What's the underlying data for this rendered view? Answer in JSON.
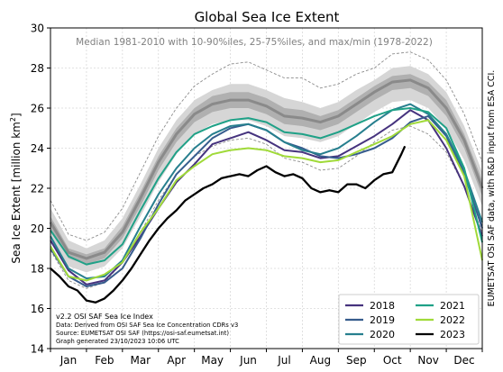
{
  "chart_data": {
    "type": "line",
    "title": "Global Sea Ice Extent",
    "subtitle": "Median 1981-2010 with 10-90%iles, 25-75%iles, and max/min (1978-2022)",
    "ylabel_main": "Sea Ice Extent [million km",
    "ylabel_sup": "2",
    "ylabel_end": "]",
    "xlabel": "",
    "ylim": [
      14,
      30
    ],
    "yticks": [
      "14",
      "16",
      "18",
      "20",
      "22",
      "24",
      "26",
      "28",
      "30"
    ],
    "months": [
      "Jan",
      "Feb",
      "Mar",
      "Apr",
      "May",
      "Jun",
      "Jul",
      "Aug",
      "Sep",
      "Oct",
      "Nov",
      "Dec"
    ],
    "xlim": [
      0,
      12
    ],
    "grid": true,
    "legend_position": "bottom-right",
    "right_note": "EUMETSAT OSI SAF data, with R&D input from ESA CCI.",
    "footnote": [
      "v2.2 OSI SAF Sea Ice Index",
      "Data: Derived from OSI SAF Sea Ice Concentration CDRs v3",
      "Source: EUMETSAT OSI SAF (https://osi-saf.eumetsat.int)",
      "Graph generated 23/10/2023 10:06 UTC"
    ],
    "climatology": {
      "x": [
        0,
        0.5,
        1,
        1.5,
        2,
        2.5,
        3,
        3.5,
        4,
        4.5,
        5,
        5.5,
        6,
        6.5,
        7,
        7.5,
        8,
        8.5,
        9,
        9.5,
        10,
        10.5,
        11,
        11.5,
        12
      ],
      "max": [
        21.4,
        19.7,
        19.4,
        19.8,
        21.0,
        22.8,
        24.6,
        26.0,
        27.1,
        27.7,
        28.2,
        28.3,
        27.9,
        27.5,
        27.5,
        27.0,
        27.2,
        27.7,
        28.0,
        28.7,
        28.8,
        28.4,
        27.4,
        25.7,
        23.3
      ],
      "p90": [
        21.0,
        19.4,
        19.0,
        19.4,
        20.5,
        22.2,
        24.0,
        25.4,
        26.4,
        26.9,
        27.2,
        27.2,
        26.9,
        26.5,
        26.3,
        26.0,
        26.3,
        26.9,
        27.4,
        28.0,
        28.1,
        27.7,
        26.8,
        25.1,
        22.8
      ],
      "p75": [
        20.6,
        19.0,
        18.7,
        19.0,
        20.1,
        21.8,
        23.6,
        25.0,
        26.0,
        26.6,
        26.8,
        26.8,
        26.5,
        26.0,
        25.9,
        25.6,
        25.9,
        26.5,
        27.1,
        27.6,
        27.7,
        27.3,
        26.4,
        24.7,
        22.4
      ],
      "median": [
        20.3,
        18.8,
        18.5,
        18.8,
        19.8,
        21.5,
        23.3,
        24.7,
        25.7,
        26.2,
        26.4,
        26.4,
        26.1,
        25.6,
        25.5,
        25.3,
        25.6,
        26.2,
        26.8,
        27.3,
        27.4,
        27.0,
        26.0,
        24.4,
        22.0
      ],
      "p25": [
        20.0,
        18.5,
        18.2,
        18.5,
        19.5,
        21.1,
        22.9,
        24.3,
        25.3,
        25.8,
        26.0,
        26.0,
        25.7,
        25.2,
        25.1,
        24.9,
        25.2,
        25.8,
        26.4,
        26.9,
        27.0,
        26.6,
        25.6,
        24.0,
        21.6
      ],
      "p10": [
        19.6,
        18.1,
        17.8,
        18.1,
        19.0,
        20.6,
        22.3,
        23.7,
        24.7,
        25.2,
        25.4,
        25.4,
        25.1,
        24.6,
        24.5,
        24.3,
        24.6,
        25.2,
        25.8,
        26.3,
        26.4,
        26.0,
        25.0,
        23.4,
        21.1
      ],
      "min": [
        18.9,
        17.4,
        17.0,
        17.3,
        18.3,
        19.8,
        21.4,
        22.7,
        23.6,
        24.1,
        24.4,
        24.5,
        24.2,
        23.5,
        23.3,
        22.9,
        23.0,
        23.6,
        24.3,
        24.9,
        25.1,
        24.7,
        23.8,
        22.1,
        19.8
      ]
    },
    "series": [
      {
        "name": "2018",
        "color": "#46337e",
        "x": [
          0,
          0.5,
          1,
          1.5,
          2,
          2.5,
          3,
          3.5,
          4,
          4.5,
          5,
          5.5,
          6,
          6.5,
          7,
          7.5,
          8,
          8.5,
          9,
          9.5,
          10,
          10.5,
          11,
          11.5,
          12
        ],
        "y": [
          19.4,
          17.9,
          17.2,
          17.4,
          18.3,
          19.6,
          21.0,
          22.3,
          23.2,
          24.2,
          24.5,
          24.8,
          24.4,
          23.9,
          23.8,
          23.5,
          23.6,
          24.1,
          24.6,
          25.2,
          25.9,
          25.4,
          24.0,
          22.1,
          19.6
        ]
      },
      {
        "name": "2019",
        "color": "#365c8d",
        "x": [
          0,
          0.5,
          1,
          1.5,
          2,
          2.5,
          3,
          3.5,
          4,
          4.5,
          5,
          5.5,
          6,
          6.5,
          7,
          7.5,
          8,
          8.5,
          9,
          9.5,
          10,
          10.5,
          11,
          11.5,
          12
        ],
        "y": [
          19.0,
          17.6,
          17.1,
          17.3,
          18.0,
          19.5,
          21.2,
          22.7,
          23.6,
          24.5,
          25.0,
          25.2,
          24.9,
          24.3,
          24.0,
          23.6,
          23.5,
          23.7,
          24.0,
          24.5,
          25.3,
          25.6,
          24.6,
          22.7,
          20.0
        ]
      },
      {
        "name": "2020",
        "color": "#277f8e",
        "x": [
          0,
          0.5,
          1,
          1.5,
          2,
          2.5,
          3,
          3.5,
          4,
          4.5,
          5,
          5.5,
          6,
          6.5,
          7,
          7.5,
          8,
          8.5,
          9,
          9.5,
          10,
          10.5,
          11,
          11.5,
          12
        ],
        "y": [
          19.6,
          18.0,
          17.5,
          17.6,
          18.4,
          20.1,
          21.7,
          23.0,
          24.0,
          24.7,
          25.1,
          25.2,
          24.9,
          24.3,
          23.9,
          23.7,
          24.0,
          24.6,
          25.3,
          25.9,
          26.2,
          25.7,
          24.7,
          22.9,
          20.3
        ]
      },
      {
        "name": "2021",
        "color": "#1fa187",
        "x": [
          0,
          0.5,
          1,
          1.5,
          2,
          2.5,
          3,
          3.5,
          4,
          4.5,
          5,
          5.5,
          6,
          6.5,
          7,
          7.5,
          8,
          8.5,
          9,
          9.5,
          10,
          10.5,
          11,
          11.5,
          12
        ],
        "y": [
          19.9,
          18.6,
          18.2,
          18.4,
          19.2,
          20.9,
          22.5,
          23.8,
          24.7,
          25.1,
          25.4,
          25.5,
          25.3,
          24.8,
          24.7,
          24.5,
          24.8,
          25.2,
          25.6,
          25.9,
          26.0,
          25.8,
          25.0,
          23.0,
          19.3
        ]
      },
      {
        "name": "2022",
        "color": "#a0da39",
        "x": [
          0,
          0.5,
          1,
          1.5,
          2,
          2.5,
          3,
          3.5,
          4,
          4.5,
          5,
          5.5,
          6,
          6.5,
          7,
          7.5,
          8,
          8.5,
          9,
          9.5,
          10,
          10.5,
          11,
          11.5,
          12
        ],
        "y": [
          19.1,
          17.6,
          17.4,
          17.7,
          18.3,
          19.8,
          21.0,
          22.4,
          23.1,
          23.7,
          23.9,
          24.0,
          23.9,
          23.6,
          23.5,
          23.3,
          23.4,
          23.8,
          24.2,
          24.6,
          25.2,
          25.4,
          24.4,
          22.6,
          18.4
        ]
      },
      {
        "name": "2023",
        "color": "#000000",
        "x": [
          0,
          0.25,
          0.5,
          0.75,
          1,
          1.25,
          1.5,
          1.75,
          2,
          2.25,
          2.5,
          2.75,
          3,
          3.25,
          3.5,
          3.75,
          4,
          4.25,
          4.5,
          4.75,
          5,
          5.25,
          5.5,
          5.75,
          6,
          6.25,
          6.5,
          6.75,
          7,
          7.25,
          7.5,
          7.75,
          8,
          8.25,
          8.5,
          8.75,
          9,
          9.25,
          9.5,
          9.75,
          9.85
        ],
        "y": [
          18.0,
          17.6,
          17.1,
          16.9,
          16.4,
          16.3,
          16.5,
          16.9,
          17.4,
          18.0,
          18.7,
          19.4,
          20.0,
          20.5,
          20.9,
          21.4,
          21.7,
          22.0,
          22.2,
          22.5,
          22.6,
          22.7,
          22.6,
          22.9,
          23.1,
          22.8,
          22.6,
          22.7,
          22.5,
          22.0,
          21.8,
          21.9,
          21.8,
          22.2,
          22.2,
          22.0,
          22.4,
          22.7,
          22.8,
          23.7,
          24.1
        ]
      }
    ]
  }
}
